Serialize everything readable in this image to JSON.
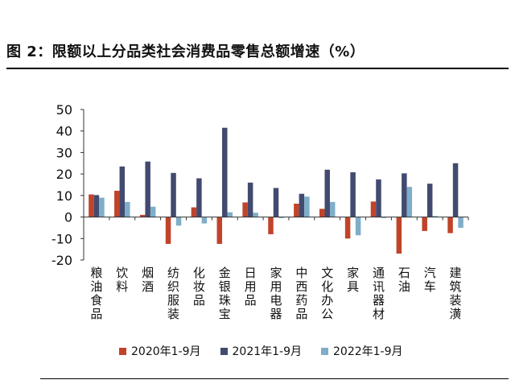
{
  "title": "图 2：限额以上分品类社会消费品零售总额增速（%）",
  "chart_data": {
    "type": "bar",
    "categories": [
      "粮油食品",
      "饮料",
      "烟酒",
      "纺织服装",
      "化妆品",
      "金银珠宝",
      "日用品",
      "家用电器",
      "中西药品",
      "文化办公",
      "家具",
      "通讯器材",
      "石油",
      "汽车",
      "建筑装潢"
    ],
    "ylim": [
      -20,
      50
    ],
    "yticks": [
      50,
      40,
      30,
      20,
      10,
      0,
      -10,
      -20
    ],
    "grid": false,
    "legend_position": "bottom",
    "series": [
      {
        "name": "2020年1-9月",
        "color": "#c0442a",
        "values": [
          10.5,
          12.2,
          1.0,
          -12.5,
          4.5,
          -12.5,
          6.8,
          -8.0,
          6.2,
          3.8,
          -10.0,
          7.2,
          -17.0,
          -6.5,
          -7.5
        ]
      },
      {
        "name": "2021年1-9月",
        "color": "#434a70",
        "values": [
          10.2,
          23.5,
          25.8,
          20.5,
          18.0,
          41.5,
          16.0,
          13.5,
          10.8,
          22.0,
          20.8,
          17.5,
          20.3,
          15.5,
          25.0
        ]
      },
      {
        "name": "2022年1-9月",
        "color": "#7faec8",
        "values": [
          9.0,
          7.0,
          4.8,
          -4.0,
          -3.0,
          2.2,
          2.0,
          -0.5,
          9.5,
          7.0,
          -8.5,
          -0.5,
          14.0,
          0.5,
          -5.0
        ]
      }
    ]
  }
}
